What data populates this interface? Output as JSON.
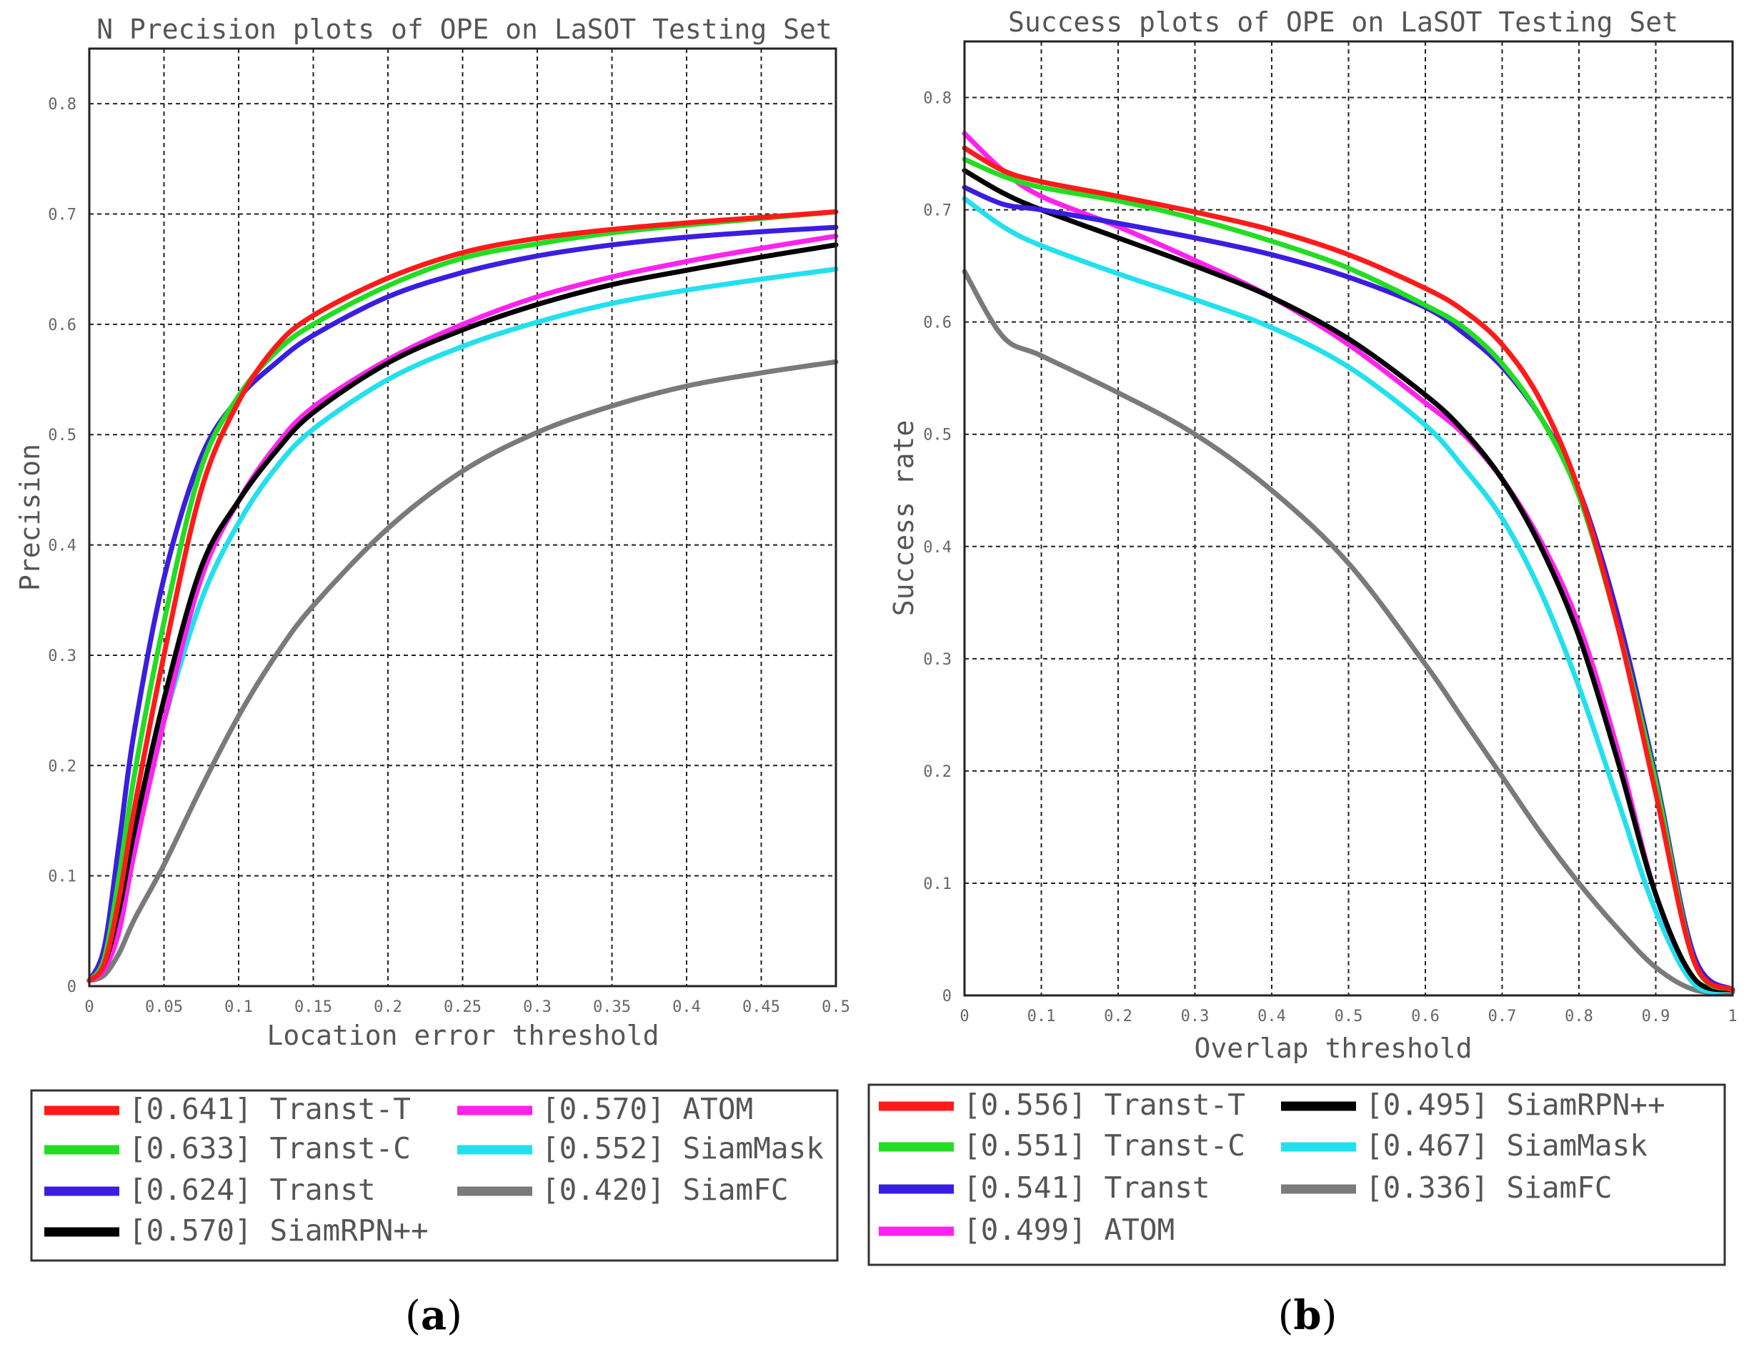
{
  "colors": {
    "Transt-T": "#ff1a1a",
    "Transt-C": "#22dd22",
    "Transt": "#3a1ee0",
    "SiamRPN++": "#000000",
    "ATOM": "#ff22ee",
    "SiamMask": "#22e0ee",
    "SiamFC": "#7a7a7a"
  },
  "chart_data": [
    {
      "type": "line",
      "title": "N Precision plots of OPE on LaSOT Testing Set",
      "xlabel": "Location error threshold",
      "ylabel": "Precision",
      "xlim": [
        0,
        0.5
      ],
      "ylim": [
        0,
        0.85
      ],
      "grid": true,
      "legend_position": "bottom",
      "caption": "a",
      "xticks": [
        0,
        0.05,
        0.1,
        0.15,
        0.2,
        0.25,
        0.3,
        0.35,
        0.4,
        0.45,
        0.5
      ],
      "xtick_labels": [
        "0",
        "0.05",
        "0.1",
        "0.15",
        "0.2",
        "0.25",
        "0.3",
        "0.35",
        "0.4",
        "0.45",
        "0.5"
      ],
      "yticks": [
        0,
        0.1,
        0.2,
        0.3,
        0.4,
        0.5,
        0.6,
        0.7,
        0.8
      ],
      "ytick_labels": [
        "0",
        "0.1",
        "0.2",
        "0.3",
        "0.4",
        "0.5",
        "0.6",
        "0.7",
        "0.8"
      ],
      "x": [
        0,
        0.01,
        0.02,
        0.03,
        0.05,
        0.075,
        0.1,
        0.125,
        0.15,
        0.2,
        0.25,
        0.3,
        0.35,
        0.4,
        0.45,
        0.5
      ],
      "series": [
        {
          "name": "Transt-T",
          "score": "0.641",
          "values": [
            0.005,
            0.02,
            0.08,
            0.16,
            0.3,
            0.45,
            0.53,
            0.58,
            0.608,
            0.642,
            0.665,
            0.678,
            0.686,
            0.692,
            0.697,
            0.702
          ]
        },
        {
          "name": "Transt-C",
          "score": "0.633",
          "values": [
            0.005,
            0.025,
            0.1,
            0.19,
            0.33,
            0.47,
            0.535,
            0.575,
            0.6,
            0.635,
            0.66,
            0.673,
            0.683,
            0.69,
            0.696,
            0.702
          ]
        },
        {
          "name": "Transt",
          "score": "0.624",
          "values": [
            0.005,
            0.035,
            0.13,
            0.23,
            0.37,
            0.48,
            0.533,
            0.565,
            0.59,
            0.625,
            0.647,
            0.662,
            0.672,
            0.679,
            0.684,
            0.688
          ]
        },
        {
          "name": "SiamRPN++",
          "score": "0.570",
          "values": [
            0.005,
            0.02,
            0.07,
            0.14,
            0.26,
            0.38,
            0.44,
            0.485,
            0.52,
            0.565,
            0.595,
            0.618,
            0.636,
            0.649,
            0.661,
            0.672
          ]
        },
        {
          "name": "ATOM",
          "score": "0.570",
          "values": [
            0.005,
            0.015,
            0.05,
            0.12,
            0.24,
            0.37,
            0.44,
            0.49,
            0.525,
            0.568,
            0.6,
            0.625,
            0.643,
            0.657,
            0.669,
            0.68
          ]
        },
        {
          "name": "SiamMask",
          "score": "0.552",
          "values": [
            0.005,
            0.02,
            0.07,
            0.13,
            0.24,
            0.35,
            0.42,
            0.47,
            0.505,
            0.55,
            0.58,
            0.602,
            0.619,
            0.631,
            0.641,
            0.65
          ]
        },
        {
          "name": "SiamFC",
          "score": "0.420",
          "values": [
            0.005,
            0.01,
            0.03,
            0.06,
            0.11,
            0.18,
            0.245,
            0.3,
            0.345,
            0.415,
            0.467,
            0.502,
            0.526,
            0.544,
            0.556,
            0.566
          ]
        }
      ]
    },
    {
      "type": "line",
      "title": "Success plots of OPE on LaSOT Testing Set",
      "xlabel": "Overlap threshold",
      "ylabel": "Success rate",
      "xlim": [
        0,
        1
      ],
      "ylim": [
        0,
        0.85
      ],
      "grid": true,
      "legend_position": "bottom",
      "caption": "b",
      "xticks": [
        0,
        0.1,
        0.2,
        0.3,
        0.4,
        0.5,
        0.6,
        0.7,
        0.8,
        0.9,
        1
      ],
      "xtick_labels": [
        "0",
        "0.1",
        "0.2",
        "0.3",
        "0.4",
        "0.5",
        "0.6",
        "0.7",
        "0.8",
        "0.9",
        "1"
      ],
      "yticks": [
        0,
        0.1,
        0.2,
        0.3,
        0.4,
        0.5,
        0.6,
        0.7,
        0.8
      ],
      "ytick_labels": [
        "0",
        "0.1",
        "0.2",
        "0.3",
        "0.4",
        "0.5",
        "0.6",
        "0.7",
        "0.8"
      ],
      "x": [
        0,
        0.05,
        0.1,
        0.2,
        0.3,
        0.4,
        0.5,
        0.6,
        0.65,
        0.7,
        0.75,
        0.8,
        0.85,
        0.9,
        0.95,
        1
      ],
      "series": [
        {
          "name": "Transt-T",
          "score": "0.556",
          "values": [
            0.755,
            0.735,
            0.725,
            0.712,
            0.698,
            0.682,
            0.66,
            0.63,
            0.61,
            0.58,
            0.53,
            0.45,
            0.33,
            0.18,
            0.03,
            0.005
          ]
        },
        {
          "name": "Transt-C",
          "score": "0.551",
          "values": [
            0.745,
            0.73,
            0.72,
            0.708,
            0.692,
            0.672,
            0.648,
            0.615,
            0.595,
            0.563,
            0.515,
            0.445,
            0.33,
            0.19,
            0.03,
            0.005
          ]
        },
        {
          "name": "Transt",
          "score": "0.541",
          "values": [
            0.72,
            0.705,
            0.7,
            0.688,
            0.675,
            0.66,
            0.64,
            0.613,
            0.59,
            0.56,
            0.515,
            0.45,
            0.34,
            0.195,
            0.035,
            0.005
          ]
        },
        {
          "name": "SiamRPN++",
          "score": "0.495",
          "values": [
            0.735,
            0.715,
            0.7,
            0.675,
            0.65,
            0.622,
            0.585,
            0.535,
            0.503,
            0.46,
            0.4,
            0.32,
            0.21,
            0.09,
            0.015,
            0.005
          ]
        },
        {
          "name": "ATOM",
          "score": "0.499",
          "values": [
            0.768,
            0.735,
            0.712,
            0.685,
            0.655,
            0.622,
            0.58,
            0.528,
            0.5,
            0.46,
            0.405,
            0.33,
            0.22,
            0.09,
            0.015,
            0.005
          ]
        },
        {
          "name": "SiamMask",
          "score": "0.467",
          "values": [
            0.71,
            0.685,
            0.668,
            0.643,
            0.62,
            0.595,
            0.56,
            0.508,
            0.47,
            0.425,
            0.36,
            0.275,
            0.175,
            0.075,
            0.01,
            0.005
          ]
        },
        {
          "name": "SiamFC",
          "score": "0.336",
          "values": [
            0.645,
            0.587,
            0.57,
            0.537,
            0.5,
            0.45,
            0.385,
            0.295,
            0.245,
            0.195,
            0.145,
            0.1,
            0.06,
            0.025,
            0.005,
            0.003
          ]
        }
      ]
    }
  ]
}
